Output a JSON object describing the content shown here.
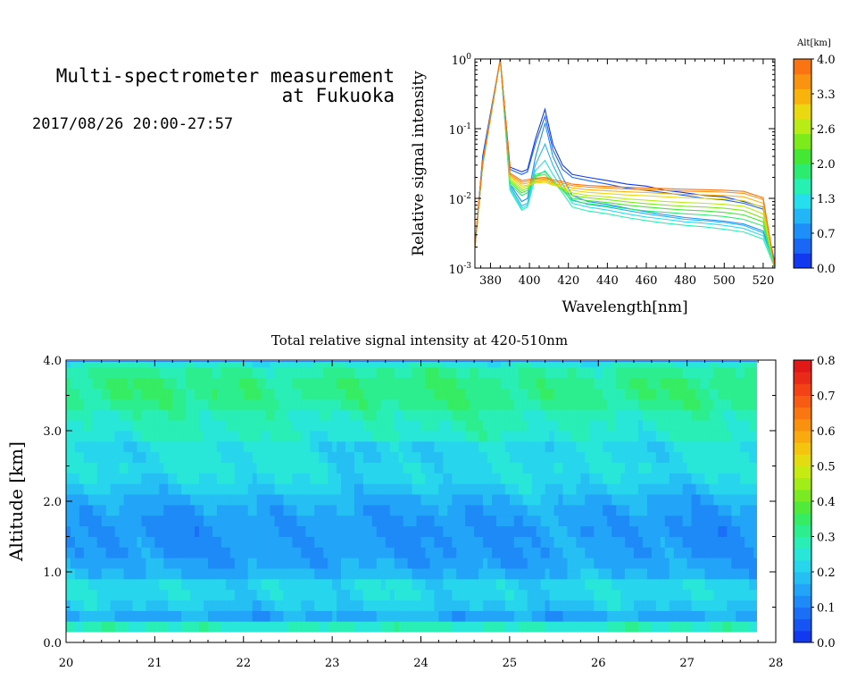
{
  "header": {
    "title_line1": "Multi-spectrometer measurement",
    "title_line2": "at Fukuoka",
    "datetime": "2017/08/26 20:00-27:57"
  },
  "chart_data": [
    {
      "type": "line",
      "name": "spectrum",
      "xlabel": "Wavelength[nm]",
      "ylabel": "Relative signal intensity",
      "xlim": [
        372,
        526
      ],
      "ylim": [
        0.001,
        1
      ],
      "yscale": "log",
      "xticks": [
        380,
        400,
        420,
        440,
        460,
        480,
        500,
        520
      ],
      "yticks": [
        {
          "value": 1,
          "base": "10",
          "exp": "0"
        },
        {
          "value": 0.1,
          "base": "10",
          "exp": "-1"
        },
        {
          "value": 0.01,
          "base": "10",
          "exp": "-2"
        },
        {
          "value": 0.001,
          "base": "10",
          "exp": "-3"
        }
      ],
      "colorbar": {
        "title": "Alt[km]",
        "range": [
          0,
          4
        ],
        "tick_labels": [
          "0.0",
          "0.7",
          "1.3",
          "2.0",
          "2.6",
          "3.3",
          "4.0"
        ],
        "colors": [
          "#1238f0",
          "#1a66f5",
          "#1e8ff8",
          "#22b6f6",
          "#26dfee",
          "#26f0b2",
          "#2bec6e",
          "#43e834",
          "#7ceb1c",
          "#b8ec14",
          "#ead810",
          "#f8b40c",
          "#fa9410",
          "#fa7412"
        ]
      },
      "x": [
        372,
        376,
        385,
        390,
        396,
        399,
        403,
        408,
        412,
        417,
        422,
        430,
        440,
        450,
        460,
        470,
        480,
        490,
        500,
        510,
        520,
        526
      ],
      "series": [
        {
          "alt": 0.15,
          "color": "#1238f0",
          "values": [
            0.002,
            0.04,
            1.0,
            0.028,
            0.024,
            0.026,
            0.07,
            0.19,
            0.06,
            0.03,
            0.022,
            0.02,
            0.018,
            0.016,
            0.015,
            0.013,
            0.012,
            0.011,
            0.0105,
            0.009,
            0.0075,
            0.001
          ]
        },
        {
          "alt": 0.45,
          "color": "#1a66f5",
          "values": [
            0.002,
            0.035,
            1.0,
            0.026,
            0.022,
            0.024,
            0.06,
            0.15,
            0.05,
            0.026,
            0.02,
            0.018,
            0.016,
            0.014,
            0.013,
            0.012,
            0.011,
            0.01,
            0.0095,
            0.0085,
            0.007,
            0.0012
          ]
        },
        {
          "alt": 0.8,
          "color": "#1e8ff8",
          "values": [
            0.002,
            0.035,
            1.0,
            0.016,
            0.009,
            0.01,
            0.038,
            0.12,
            0.04,
            0.02,
            0.011,
            0.009,
            0.0082,
            0.0072,
            0.0064,
            0.0058,
            0.0053,
            0.005,
            0.0047,
            0.0043,
            0.0034,
            0.0012
          ]
        },
        {
          "alt": 1.05,
          "color": "#22b6f6",
          "values": [
            0.002,
            0.03,
            1.0,
            0.015,
            0.0078,
            0.0085,
            0.03,
            0.06,
            0.03,
            0.016,
            0.0095,
            0.0082,
            0.0075,
            0.0067,
            0.006,
            0.0055,
            0.005,
            0.0048,
            0.0045,
            0.0041,
            0.0032,
            0.0011
          ]
        },
        {
          "alt": 1.3,
          "color": "#26dfee",
          "values": [
            0.002,
            0.03,
            1.0,
            0.014,
            0.0072,
            0.008,
            0.025,
            0.035,
            0.022,
            0.014,
            0.0085,
            0.0075,
            0.0068,
            0.006,
            0.0054,
            0.005,
            0.0046,
            0.0044,
            0.0041,
            0.0037,
            0.0029,
            0.0011
          ]
        },
        {
          "alt": 1.6,
          "color": "#26f0b2",
          "values": [
            0.002,
            0.03,
            1.0,
            0.013,
            0.0068,
            0.0075,
            0.02,
            0.025,
            0.018,
            0.012,
            0.0075,
            0.0066,
            0.006,
            0.0053,
            0.0048,
            0.0044,
            0.0041,
            0.0039,
            0.0036,
            0.0033,
            0.0026,
            0.001
          ]
        },
        {
          "alt": 1.9,
          "color": "#2bec6e",
          "values": [
            0.002,
            0.03,
            1.0,
            0.016,
            0.011,
            0.012,
            0.022,
            0.024,
            0.018,
            0.013,
            0.0092,
            0.0084,
            0.0078,
            0.0071,
            0.0066,
            0.0063,
            0.006,
            0.0058,
            0.0055,
            0.005,
            0.004,
            0.001
          ]
        },
        {
          "alt": 2.2,
          "color": "#43e834",
          "values": [
            0.002,
            0.03,
            1.0,
            0.017,
            0.012,
            0.013,
            0.021,
            0.022,
            0.017,
            0.0135,
            0.01,
            0.0093,
            0.0087,
            0.008,
            0.0075,
            0.0071,
            0.0068,
            0.0066,
            0.0063,
            0.0058,
            0.0046,
            0.001
          ]
        },
        {
          "alt": 2.5,
          "color": "#7ceb1c",
          "values": [
            0.002,
            0.032,
            1.0,
            0.018,
            0.013,
            0.014,
            0.019,
            0.02,
            0.017,
            0.014,
            0.011,
            0.0102,
            0.0096,
            0.0089,
            0.0084,
            0.008,
            0.0077,
            0.0075,
            0.0072,
            0.0067,
            0.0052,
            0.001
          ]
        },
        {
          "alt": 2.8,
          "color": "#b8ec14",
          "values": [
            0.002,
            0.032,
            1.0,
            0.019,
            0.014,
            0.015,
            0.017,
            0.018,
            0.016,
            0.014,
            0.012,
            0.011,
            0.0105,
            0.0098,
            0.0094,
            0.009,
            0.0087,
            0.0085,
            0.0082,
            0.0077,
            0.006,
            0.001
          ]
        },
        {
          "alt": 3.1,
          "color": "#ead810",
          "values": [
            0.002,
            0.032,
            1.0,
            0.02,
            0.015,
            0.0155,
            0.0165,
            0.017,
            0.0155,
            0.0145,
            0.013,
            0.0122,
            0.0117,
            0.0112,
            0.0109,
            0.0105,
            0.0102,
            0.01,
            0.0098,
            0.0093,
            0.0074,
            0.001
          ]
        },
        {
          "alt": 3.4,
          "color": "#f8b40c",
          "values": [
            0.002,
            0.033,
            1.0,
            0.021,
            0.016,
            0.0165,
            0.0175,
            0.018,
            0.0165,
            0.0155,
            0.0141,
            0.0133,
            0.0128,
            0.0124,
            0.0121,
            0.0117,
            0.0114,
            0.0112,
            0.011,
            0.0105,
            0.0085,
            0.001
          ]
        },
        {
          "alt": 3.7,
          "color": "#fa9410",
          "values": [
            0.002,
            0.033,
            1.0,
            0.022,
            0.017,
            0.0175,
            0.0185,
            0.019,
            0.0175,
            0.0165,
            0.0152,
            0.0145,
            0.014,
            0.0136,
            0.0133,
            0.013,
            0.0127,
            0.0125,
            0.0123,
            0.0118,
            0.0096,
            0.001
          ]
        },
        {
          "alt": 3.95,
          "color": "#fa7412",
          "values": [
            0.002,
            0.033,
            1.0,
            0.023,
            0.018,
            0.0185,
            0.0195,
            0.02,
            0.0185,
            0.0175,
            0.016,
            0.0153,
            0.0148,
            0.0144,
            0.0141,
            0.0138,
            0.0135,
            0.0133,
            0.0131,
            0.0126,
            0.0102,
            0.001
          ]
        }
      ]
    },
    {
      "type": "heatmap",
      "name": "altitude-time",
      "title": "Total relative signal intensity at 420-510nm",
      "ylabel": "Altitude [km]",
      "xlim": [
        20,
        28
      ],
      "ylim": [
        0,
        4
      ],
      "data_xlim": [
        20,
        27.8
      ],
      "data_ylim": [
        0.15,
        4.0
      ],
      "xticks": [
        20,
        21,
        22,
        23,
        24,
        25,
        26,
        27,
        28
      ],
      "ytick_labels": [
        "0.0",
        "1.0",
        "2.0",
        "3.0",
        "4.0"
      ],
      "colorbar": {
        "range": [
          0,
          0.8
        ],
        "tick_labels": [
          "0.0",
          "0.1",
          "0.2",
          "0.3",
          "0.4",
          "0.5",
          "0.6",
          "0.7",
          "0.8"
        ],
        "colors": [
          "#1238f0",
          "#1654f3",
          "#1a6ff6",
          "#1e8af8",
          "#22a4f8",
          "#25bff4",
          "#27d6ec",
          "#28e6d8",
          "#29eeb6",
          "#2cee8e",
          "#35ec62",
          "#52ea3a",
          "#7aeb22",
          "#a2ec18",
          "#c6ea12",
          "#e4dc10",
          "#f4c40e",
          "#f9aa0e",
          "#fa900f",
          "#fa7611",
          "#f85c14",
          "#f24216",
          "#ea2a18",
          "#e01818"
        ]
      },
      "altitudes": [
        0.15,
        0.3,
        0.45,
        0.6,
        0.75,
        0.9,
        1.05,
        1.2,
        1.35,
        1.5,
        1.65,
        1.8,
        1.95,
        2.1,
        2.25,
        2.4,
        2.55,
        2.7,
        2.85,
        3.0,
        3.15,
        3.3,
        3.45,
        3.6,
        3.75,
        3.9
      ],
      "profile": [
        0.27,
        0.16,
        0.2,
        0.22,
        0.22,
        0.17,
        0.15,
        0.14,
        0.14,
        0.135,
        0.14,
        0.15,
        0.17,
        0.2,
        0.22,
        0.24,
        0.23,
        0.23,
        0.26,
        0.27,
        0.28,
        0.31,
        0.32,
        0.32,
        0.3,
        0.26
      ]
    }
  ]
}
